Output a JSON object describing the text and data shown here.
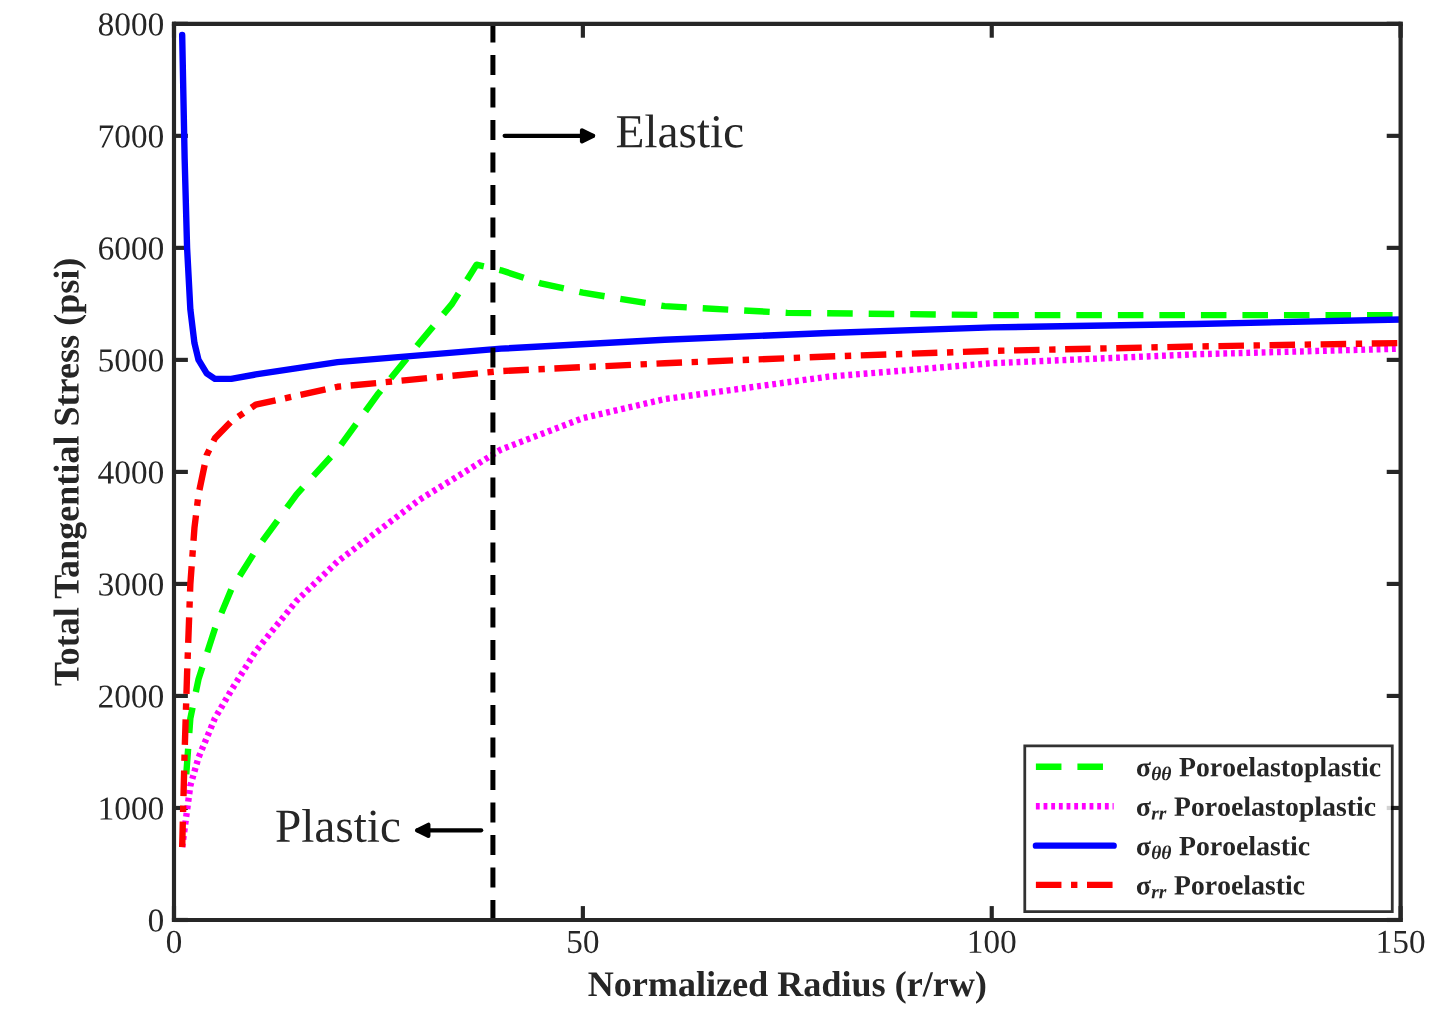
{
  "chart_data": {
    "type": "line",
    "xlabel": "Normalized Radius (r/rw)",
    "ylabel": "Total Tangential Stress (psi)",
    "xlim": [
      0,
      150
    ],
    "xticks": [
      0,
      50,
      100,
      150
    ],
    "ylim": [
      0,
      8000
    ],
    "yticks": [
      0,
      1000,
      2000,
      3000,
      4000,
      5000,
      6000,
      7000,
      8000
    ],
    "grid": false,
    "legend": "bottom right",
    "ref_lines": [
      {
        "axis": "x",
        "value": 39,
        "color": "#000000",
        "line_style": "dashed"
      }
    ],
    "annotations": [
      "Elastic",
      "Plastic"
    ],
    "series": [
      {
        "name": "σ$_{θθ}$ Poroelastoplastic",
        "color": "#00ff00",
        "line_style": "dashed",
        "x": [
          1.5,
          2,
          3,
          5,
          7,
          10,
          15,
          20,
          25,
          30,
          34,
          37,
          40,
          45,
          50,
          60,
          75,
          100,
          125,
          150
        ],
        "values": [
          1300,
          1800,
          2150,
          2600,
          2950,
          3300,
          3800,
          4200,
          4700,
          5150,
          5500,
          5850,
          5800,
          5680,
          5600,
          5480,
          5420,
          5400,
          5400,
          5400
        ]
      },
      {
        "name": "σ$_{rr}$ Poroelastoplastic",
        "color": "#ff00ff",
        "line_style": "dotted",
        "x": [
          1,
          2,
          3,
          5,
          7,
          10,
          15,
          20,
          30,
          40,
          50,
          60,
          80,
          100,
          125,
          150
        ],
        "values": [
          650,
          1200,
          1450,
          1800,
          2050,
          2400,
          2850,
          3200,
          3750,
          4200,
          4480,
          4650,
          4850,
          4970,
          5050,
          5100
        ]
      },
      {
        "name": "σ$_{θθ}$ Poroelastic",
        "color": "#0000ff",
        "line_style": "solid",
        "x": [
          1,
          1.3,
          1.6,
          2,
          2.5,
          3,
          4,
          5,
          7,
          10,
          20,
          40,
          60,
          80,
          100,
          125,
          150
        ],
        "values": [
          7900,
          6800,
          6000,
          5450,
          5150,
          5000,
          4880,
          4830,
          4830,
          4870,
          4980,
          5100,
          5180,
          5240,
          5290,
          5320,
          5360
        ]
      },
      {
        "name": "σ$_{rr}$ Poroelastic",
        "color": "#ff0000",
        "line_style": "dashdot",
        "x": [
          1,
          1.3,
          1.6,
          2,
          2.5,
          3,
          4,
          5,
          7,
          10,
          20,
          40,
          60,
          80,
          100,
          125,
          150
        ],
        "values": [
          650,
          1500,
          2200,
          3000,
          3500,
          3800,
          4150,
          4300,
          4450,
          4600,
          4760,
          4900,
          4970,
          5030,
          5080,
          5120,
          5150
        ]
      }
    ]
  }
}
